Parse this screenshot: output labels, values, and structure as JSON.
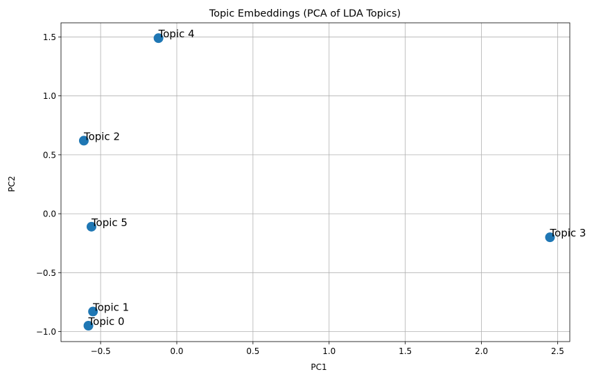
{
  "chart_data": {
    "type": "scatter",
    "title": "Topic Embeddings (PCA of LDA Topics)",
    "xlabel": "PC1",
    "ylabel": "PC2",
    "xlim": [
      -0.76,
      2.58
    ],
    "ylim": [
      -1.085,
      1.62
    ],
    "xticks": [
      -0.5,
      0.0,
      0.5,
      1.0,
      1.5,
      2.0,
      2.5
    ],
    "yticks": [
      -1.0,
      -0.5,
      0.0,
      0.5,
      1.0,
      1.5
    ],
    "xtick_labels": [
      "−0.5",
      "0.0",
      "0.5",
      "1.0",
      "1.5",
      "2.0",
      "2.5"
    ],
    "ytick_labels": [
      "−1.0",
      "−0.5",
      "0.0",
      "0.5",
      "1.0",
      "1.5"
    ],
    "grid": true,
    "marker_color": "#1f77b4",
    "points": [
      {
        "label": "Topic 0",
        "x": -0.58,
        "y": -0.95
      },
      {
        "label": "Topic 1",
        "x": -0.55,
        "y": -0.83
      },
      {
        "label": "Topic 2",
        "x": -0.61,
        "y": 0.62
      },
      {
        "label": "Topic 3",
        "x": 2.45,
        "y": -0.2
      },
      {
        "label": "Topic 4",
        "x": -0.12,
        "y": 1.49
      },
      {
        "label": "Topic 5",
        "x": -0.56,
        "y": -0.11
      }
    ]
  }
}
